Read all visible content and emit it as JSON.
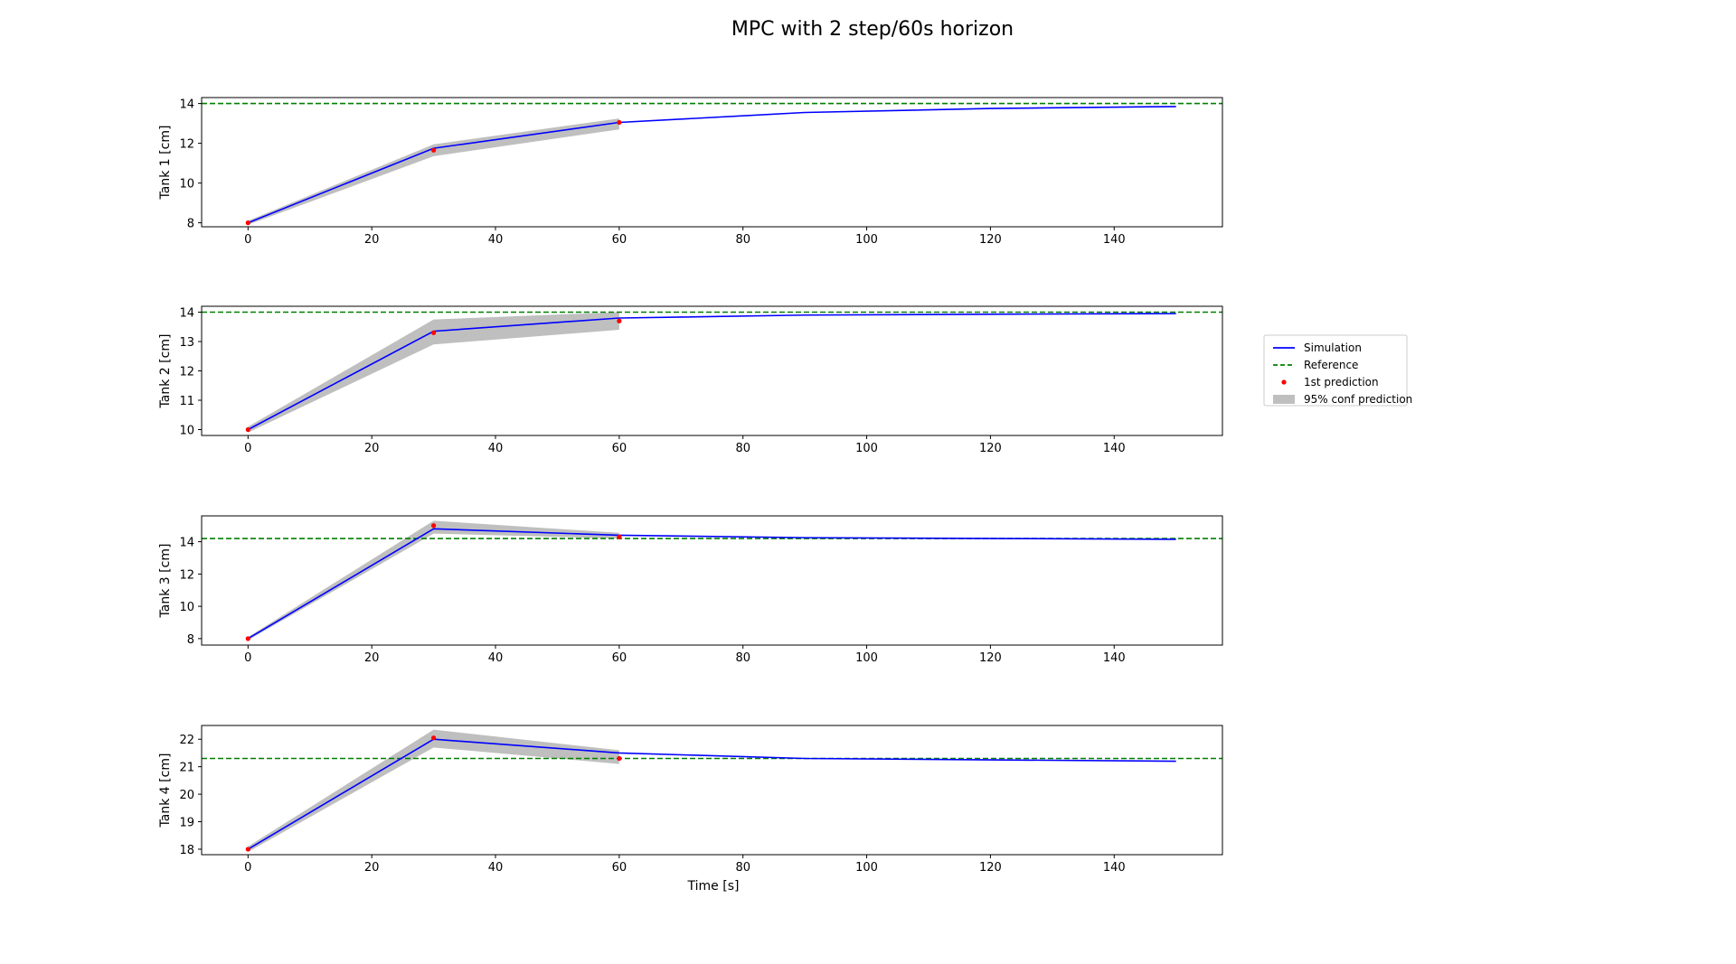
{
  "title": "MPC with 2 step/60s horizon",
  "xlabel": "Time [s]",
  "legend": {
    "placement": "right",
    "entries": [
      {
        "label": "Simulation",
        "kind": "line",
        "color": "#0000ff"
      },
      {
        "label": "Reference",
        "kind": "dashed",
        "color": "#008000"
      },
      {
        "label": "1st prediction",
        "kind": "dot",
        "color": "#ff0000"
      },
      {
        "label": "95% conf prediction",
        "kind": "patch",
        "color": "#bfbfbf"
      }
    ]
  },
  "colors": {
    "simulation": "#0000ff",
    "reference": "#008000",
    "prediction": "#ff0000",
    "confidence": "#bfbfbf"
  },
  "chart_data": [
    {
      "type": "line",
      "ylabel": "Tank 1 [cm]",
      "xlim": [
        -7.5,
        157.5
      ],
      "ylim": [
        7.8,
        14.3
      ],
      "xticks": [
        0,
        20,
        40,
        60,
        80,
        100,
        120,
        140
      ],
      "yticks": [
        8,
        10,
        12,
        14
      ],
      "reference": 14.0,
      "simulation": {
        "x": [
          0,
          30,
          60,
          90,
          120,
          150
        ],
        "y": [
          8.0,
          11.75,
          13.05,
          13.55,
          13.75,
          13.85
        ]
      },
      "prediction": {
        "x": [
          0,
          30,
          60
        ],
        "y": [
          8.0,
          11.65,
          13.05
        ]
      },
      "confidence": {
        "x": [
          0,
          30,
          60
        ],
        "lower": [
          7.9,
          11.35,
          12.7
        ],
        "upper": [
          8.1,
          11.95,
          13.25
        ]
      }
    },
    {
      "type": "line",
      "ylabel": "Tank 2 [cm]",
      "xlim": [
        -7.5,
        157.5
      ],
      "ylim": [
        9.8,
        14.2
      ],
      "xticks": [
        0,
        20,
        40,
        60,
        80,
        100,
        120,
        140
      ],
      "yticks": [
        10,
        11,
        12,
        13,
        14
      ],
      "reference": 14.0,
      "simulation": {
        "x": [
          0,
          30,
          60,
          90,
          120,
          150
        ],
        "y": [
          10.0,
          13.35,
          13.8,
          13.9,
          13.93,
          13.95
        ]
      },
      "prediction": {
        "x": [
          0,
          30,
          60
        ],
        "y": [
          10.0,
          13.3,
          13.7
        ]
      },
      "confidence": {
        "x": [
          0,
          30,
          60
        ],
        "lower": [
          9.9,
          12.9,
          13.4
        ],
        "upper": [
          10.1,
          13.75,
          14.0
        ]
      }
    },
    {
      "type": "line",
      "ylabel": "Tank 3 [cm]",
      "xlim": [
        -7.5,
        157.5
      ],
      "ylim": [
        7.6,
        15.6
      ],
      "xticks": [
        0,
        20,
        40,
        60,
        80,
        100,
        120,
        140
      ],
      "yticks": [
        8,
        10,
        12,
        14
      ],
      "reference": 14.2,
      "simulation": {
        "x": [
          0,
          30,
          60,
          90,
          120,
          150
        ],
        "y": [
          8.0,
          14.8,
          14.4,
          14.25,
          14.2,
          14.15
        ]
      },
      "prediction": {
        "x": [
          0,
          30,
          60
        ],
        "y": [
          8.0,
          15.0,
          14.3
        ]
      },
      "confidence": {
        "x": [
          0,
          30,
          60
        ],
        "lower": [
          7.9,
          14.5,
          14.2
        ],
        "upper": [
          8.1,
          15.3,
          14.55
        ]
      }
    },
    {
      "type": "line",
      "ylabel": "Tank 4 [cm]",
      "xlim": [
        -7.5,
        157.5
      ],
      "ylim": [
        17.8,
        22.5
      ],
      "xticks": [
        0,
        20,
        40,
        60,
        80,
        100,
        120,
        140
      ],
      "yticks": [
        18,
        19,
        20,
        21,
        22
      ],
      "reference": 21.3,
      "simulation": {
        "x": [
          0,
          30,
          60,
          90,
          120,
          150
        ],
        "y": [
          18.0,
          22.0,
          21.5,
          21.3,
          21.25,
          21.2
        ]
      },
      "prediction": {
        "x": [
          0,
          30,
          60
        ],
        "y": [
          18.0,
          22.05,
          21.3
        ]
      },
      "confidence": {
        "x": [
          0,
          30,
          60
        ],
        "lower": [
          17.9,
          21.7,
          21.1
        ],
        "upper": [
          18.1,
          22.35,
          21.6
        ]
      }
    }
  ]
}
